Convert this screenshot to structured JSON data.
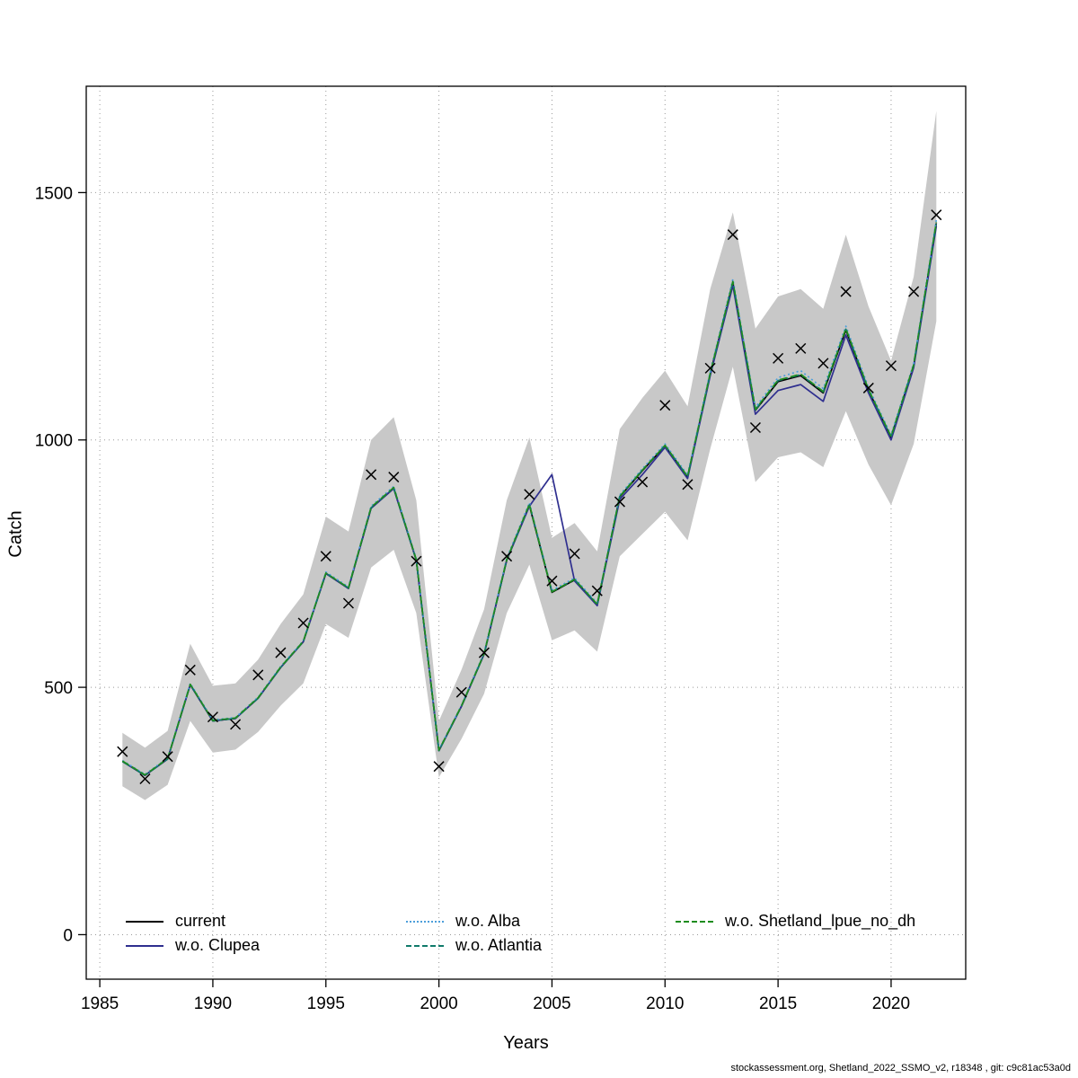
{
  "page": {
    "footer": "stockassessment.org, Shetland_2022_SSMO_v2, r18348 , git: c9c81ac53a0d"
  },
  "chart_data": {
    "type": "line",
    "title": "",
    "xlabel": "Years",
    "ylabel": "Catch",
    "x_ticks": [
      1985,
      1990,
      1995,
      2000,
      2005,
      2010,
      2015,
      2020
    ],
    "y_ticks": [
      0,
      500,
      1000,
      1500
    ],
    "xlim": [
      1984.4,
      2023.3
    ],
    "ylim": [
      -90,
      1715
    ],
    "grid": "dotted",
    "legend_position": "bottom-left-inside",
    "years": [
      1986,
      1987,
      1988,
      1989,
      1990,
      1991,
      1992,
      1993,
      1994,
      1995,
      1996,
      1997,
      1998,
      1999,
      2000,
      2001,
      2002,
      2003,
      2004,
      2005,
      2006,
      2007,
      2008,
      2009,
      2010,
      2011,
      2012,
      2013,
      2014,
      2015,
      2016,
      2017,
      2018,
      2019,
      2020,
      2021,
      2022
    ],
    "observed": {
      "marker": "x",
      "color": "#000000",
      "values": [
        370,
        315,
        360,
        535,
        440,
        425,
        525,
        570,
        630,
        765,
        670,
        930,
        925,
        755,
        340,
        490,
        570,
        765,
        890,
        715,
        770,
        695,
        875,
        915,
        1070,
        910,
        1145,
        1415,
        1025,
        1165,
        1185,
        1155,
        1300,
        1105,
        1150,
        1300,
        1455
      ]
    },
    "band": {
      "color": "#c8c8c8",
      "lower": [
        300,
        272,
        303,
        432,
        368,
        374,
        410,
        463,
        508,
        628,
        600,
        742,
        778,
        650,
        318,
        396,
        487,
        650,
        748,
        595,
        615,
        572,
        765,
        810,
        855,
        797,
        982,
        1148,
        915,
        965,
        975,
        945,
        1058,
        950,
        868,
        992,
        1240
      ],
      "upper": [
        408,
        378,
        412,
        588,
        503,
        508,
        556,
        628,
        688,
        845,
        815,
        1000,
        1046,
        878,
        432,
        536,
        658,
        878,
        1005,
        802,
        832,
        775,
        1022,
        1085,
        1140,
        1068,
        1305,
        1460,
        1225,
        1290,
        1305,
        1265,
        1415,
        1270,
        1160,
        1330,
        1665
      ]
    },
    "series": [
      {
        "name": "current",
        "color": "#000000",
        "dash": "solid",
        "values": [
          350,
          322,
          355,
          505,
          432,
          437,
          478,
          540,
          592,
          730,
          700,
          862,
          902,
          757,
          372,
          462,
          567,
          757,
          868,
          692,
          717,
          667,
          885,
          938,
          988,
          925,
          1133,
          1318,
          1060,
          1118,
          1130,
          1095,
          1222,
          1100,
          1005,
          1150,
          1438
        ]
      },
      {
        "name": "w.o. Clupea",
        "color": "#2f2f8f",
        "dash": "solid",
        "values": [
          350,
          322,
          355,
          505,
          432,
          437,
          478,
          540,
          592,
          730,
          700,
          862,
          902,
          757,
          372,
          462,
          567,
          757,
          866,
          930,
          715,
          665,
          880,
          930,
          985,
          922,
          1130,
          1312,
          1052,
          1100,
          1112,
          1078,
          1212,
          1095,
          1000,
          1146,
          1432
        ]
      },
      {
        "name": "w.o. Alba",
        "color": "#4d9fdb",
        "dash": "dotted",
        "values": [
          352,
          324,
          357,
          508,
          434,
          439,
          480,
          542,
          594,
          733,
          703,
          866,
          906,
          760,
          374,
          464,
          570,
          761,
          873,
          696,
          721,
          670,
          889,
          942,
          992,
          929,
          1138,
          1325,
          1066,
          1126,
          1140,
          1104,
          1230,
          1106,
          1010,
          1155,
          1445
        ]
      },
      {
        "name": "w.o. Atlantia",
        "color": "#107a6a",
        "dash": "dashdot",
        "values": [
          350,
          322,
          355,
          506,
          432,
          437,
          478,
          540,
          592,
          731,
          701,
          863,
          903,
          757,
          372,
          462,
          567,
          758,
          869,
          693,
          718,
          667,
          886,
          939,
          989,
          926,
          1134,
          1320,
          1061,
          1120,
          1132,
          1097,
          1224,
          1101,
          1006,
          1151,
          1440
        ]
      },
      {
        "name": "w.o. Shetland_lpue_no_dh",
        "color": "#1e8c1e",
        "dash": "dashed",
        "values": [
          351,
          323,
          356,
          506,
          433,
          438,
          479,
          541,
          593,
          731,
          701,
          864,
          904,
          758,
          373,
          463,
          568,
          758,
          870,
          693,
          718,
          668,
          886,
          939,
          989,
          926,
          1135,
          1320,
          1062,
          1121,
          1133,
          1098,
          1225,
          1102,
          1007,
          1152,
          1440
        ]
      }
    ]
  }
}
